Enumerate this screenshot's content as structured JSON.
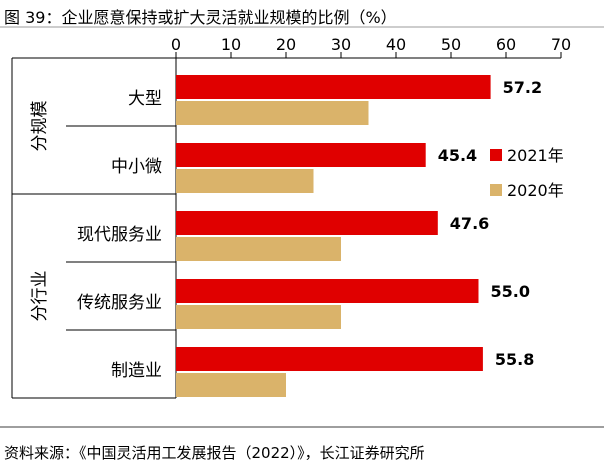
{
  "title": "图 39：企业愿意保持或扩大灵活就业规模的比例（%）",
  "source": "资料来源：《中国灵活用工发展报告（2022）》，长江证券研究所",
  "colors": {
    "s2021": "#e00000",
    "s2020": "#dab36a",
    "axis": "#000000",
    "rule": "#7f7f7f"
  },
  "chart_data": {
    "type": "bar",
    "orientation": "horizontal",
    "title": "企业愿意保持或扩大灵活就业规模的比例（%）",
    "categories": [
      "大型",
      "中小微",
      "现代服务业",
      "传统服务业",
      "制造业"
    ],
    "groups": [
      {
        "label": "分规模",
        "categories": [
          "大型",
          "中小微"
        ]
      },
      {
        "label": "分行业",
        "categories": [
          "现代服务业",
          "传统服务业",
          "制造业"
        ]
      }
    ],
    "series": [
      {
        "name": "2021年",
        "values": [
          57.2,
          45.4,
          47.6,
          55.0,
          55.8
        ],
        "data_labels": [
          "57.2",
          "45.4",
          "47.6",
          "55.0",
          "55.8"
        ]
      },
      {
        "name": "2020年",
        "values": [
          35,
          25,
          30,
          30,
          20
        ]
      }
    ],
    "x_ticks": [
      "0",
      "10",
      "20",
      "30",
      "40",
      "50",
      "60",
      "70"
    ],
    "xlim": [
      0,
      70
    ],
    "grid": false,
    "legend_position": "right"
  }
}
